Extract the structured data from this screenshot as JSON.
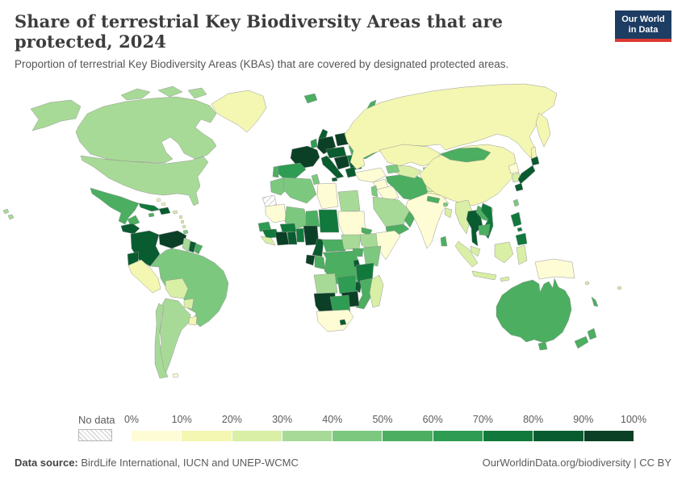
{
  "header": {
    "title": "Share of terrestrial Key Biodiversity Areas that are protected, 2024",
    "subtitle": "Proportion of terrestrial Key Biodiversity Areas (KBAs) that are covered by designated protected areas.",
    "logo": {
      "line1": "Our World",
      "line2": "in Data"
    }
  },
  "legend": {
    "no_data_label": "No data",
    "ticks": [
      "0%",
      "10%",
      "20%",
      "30%",
      "40%",
      "50%",
      "60%",
      "70%",
      "80%",
      "90%",
      "100%"
    ]
  },
  "footer": {
    "source_label": "Data source:",
    "source_text": " BirdLife International, IUCN and UNEP-WCMC",
    "right_text": "OurWorldinData.org/biodiversity | CC BY"
  },
  "colors": {
    "logo_bg": "#1d3d63",
    "logo_bar": "#dc3a31",
    "text": "#5b5b5b"
  },
  "chart_data": {
    "type": "choropleth",
    "title": "Share of terrestrial Key Biodiversity Areas that are protected, 2024",
    "unit": "%",
    "year": 2024,
    "legend_position": "bottom",
    "no_data": {
      "label": "No data",
      "pattern": "hatch"
    },
    "bins": [
      {
        "range": "0-10%",
        "color": "#fdfcd4"
      },
      {
        "range": "10-20%",
        "color": "#f3f7b1"
      },
      {
        "range": "20-30%",
        "color": "#d9efa6"
      },
      {
        "range": "30-40%",
        "color": "#a8da97"
      },
      {
        "range": "40-50%",
        "color": "#7cc87f"
      },
      {
        "range": "50-60%",
        "color": "#4cae60"
      },
      {
        "range": "60-70%",
        "color": "#2e9c52"
      },
      {
        "range": "70-80%",
        "color": "#11793c"
      },
      {
        "range": "80-90%",
        "color": "#095c30"
      },
      {
        "range": "90-100%",
        "color": "#0b4026"
      }
    ],
    "countries": [
      {
        "name": "Canada",
        "value": 35
      },
      {
        "name": "United States",
        "value": 35
      },
      {
        "name": "Greenland",
        "value": 15
      },
      {
        "name": "Mexico",
        "value": 55
      },
      {
        "name": "Guatemala",
        "value": 82
      },
      {
        "name": "Panama",
        "value": 75
      },
      {
        "name": "Cuba",
        "value": 75
      },
      {
        "name": "Dominican Republic",
        "value": 85
      },
      {
        "name": "Jamaica",
        "value": 55
      },
      {
        "name": "Bahamas",
        "value": 15
      },
      {
        "name": "Puerto Rico",
        "value": 25
      },
      {
        "name": "Lesser Antilles",
        "value": 25
      },
      {
        "name": "Trinidad and Tobago",
        "value": 45
      },
      {
        "name": "Colombia",
        "value": 85
      },
      {
        "name": "Venezuela",
        "value": 95
      },
      {
        "name": "Guyana",
        "value": 35
      },
      {
        "name": "Suriname",
        "value": 85
      },
      {
        "name": "French Guiana",
        "value": 55
      },
      {
        "name": "Ecuador",
        "value": 85
      },
      {
        "name": "Peru",
        "value": 15
      },
      {
        "name": "Brazil",
        "value": 45
      },
      {
        "name": "Bolivia",
        "value": 25
      },
      {
        "name": "Paraguay",
        "value": 25
      },
      {
        "name": "Uruguay",
        "value": 15
      },
      {
        "name": "Argentina",
        "value": 35
      },
      {
        "name": "Chile",
        "value": 35
      },
      {
        "name": "Falkland Islands",
        "value": 5
      },
      {
        "name": "Iceland",
        "value": 55
      },
      {
        "name": "Ireland",
        "value": 65
      },
      {
        "name": "United Kingdom",
        "value": 85
      },
      {
        "name": "Norway",
        "value": 55
      },
      {
        "name": "Sweden",
        "value": 85
      },
      {
        "name": "Finland",
        "value": 92
      },
      {
        "name": "Denmark",
        "value": 85
      },
      {
        "name": "Baltic states",
        "value": 85
      },
      {
        "name": "Poland",
        "value": 95
      },
      {
        "name": "Germany",
        "value": 95
      },
      {
        "name": "Czechia-Hungary",
        "value": 88
      },
      {
        "name": "France",
        "value": 95
      },
      {
        "name": "Spain",
        "value": 65
      },
      {
        "name": "Portugal",
        "value": 55
      },
      {
        "name": "Italy",
        "value": 85
      },
      {
        "name": "Balkans",
        "value": 95
      },
      {
        "name": "Greece",
        "value": 85
      },
      {
        "name": "Bulgaria",
        "value": 85
      },
      {
        "name": "Romania",
        "value": 75
      },
      {
        "name": "Ukraine",
        "value": 55
      },
      {
        "name": "Belarus",
        "value": 65
      },
      {
        "name": "Russia",
        "value": 15
      },
      {
        "name": "Turkey",
        "value": 5
      },
      {
        "name": "Syria",
        "value": 5
      },
      {
        "name": "Iraq",
        "value": 8
      },
      {
        "name": "Israel-Jordan",
        "value": 45
      },
      {
        "name": "Saudi Arabia",
        "value": 35
      },
      {
        "name": "Yemen",
        "value": 55
      },
      {
        "name": "Oman",
        "value": 55
      },
      {
        "name": "Iran",
        "value": 55
      },
      {
        "name": "Afghanistan",
        "value": 25
      },
      {
        "name": "Pakistan",
        "value": 15
      },
      {
        "name": "Kazakhstan",
        "value": 12
      },
      {
        "name": "Uzbekistan-Turkmenistan",
        "value": 25
      },
      {
        "name": "Kyrgyzstan-Tajikistan",
        "value": 45
      },
      {
        "name": "Caucasus",
        "value": 45
      },
      {
        "name": "India",
        "value": 5
      },
      {
        "name": "Nepal",
        "value": 55
      },
      {
        "name": "Bhutan",
        "value": 45
      },
      {
        "name": "Bangladesh",
        "value": 25
      },
      {
        "name": "Sri Lanka",
        "value": 55
      },
      {
        "name": "Myanmar",
        "value": 25
      },
      {
        "name": "Thailand",
        "value": 85
      },
      {
        "name": "Laos",
        "value": 55
      },
      {
        "name": "Vietnam",
        "value": 75
      },
      {
        "name": "Cambodia",
        "value": 55
      },
      {
        "name": "Malaysia",
        "value": 25
      },
      {
        "name": "Indonesia",
        "value": 25
      },
      {
        "name": "Philippines",
        "value": 75
      },
      {
        "name": "Papua New Guinea",
        "value": 5
      },
      {
        "name": "China",
        "value": 15
      },
      {
        "name": "Mongolia",
        "value": 55
      },
      {
        "name": "North Korea",
        "value": 5
      },
      {
        "name": "South Korea",
        "value": 25
      },
      {
        "name": "Japan",
        "value": 85
      },
      {
        "name": "Taiwan",
        "value": 45
      },
      {
        "name": "Morocco",
        "value": 45
      },
      {
        "name": "Algeria",
        "value": 45
      },
      {
        "name": "Tunisia",
        "value": 45
      },
      {
        "name": "Libya",
        "value": 5
      },
      {
        "name": "Egypt",
        "value": 35
      },
      {
        "name": "Western Sahara",
        "value": null
      },
      {
        "name": "Mauritania",
        "value": 5
      },
      {
        "name": "Mali",
        "value": 45
      },
      {
        "name": "Niger",
        "value": 55
      },
      {
        "name": "Chad",
        "value": 75
      },
      {
        "name": "Sudan",
        "value": 5
      },
      {
        "name": "Eritrea",
        "value": 55
      },
      {
        "name": "Ethiopia",
        "value": 35
      },
      {
        "name": "Somalia",
        "value": 8
      },
      {
        "name": "Senegal",
        "value": 65
      },
      {
        "name": "Guinea",
        "value": 75
      },
      {
        "name": "Sierra Leone",
        "value": 25
      },
      {
        "name": "Cote dIvoire",
        "value": 95
      },
      {
        "name": "Ghana",
        "value": 85
      },
      {
        "name": "Benin",
        "value": 75
      },
      {
        "name": "Burkina Faso",
        "value": 75
      },
      {
        "name": "Nigeria",
        "value": 95
      },
      {
        "name": "Cameroon",
        "value": 85
      },
      {
        "name": "Central African Republic",
        "value": 55
      },
      {
        "name": "South Sudan",
        "value": 35
      },
      {
        "name": "Uganda",
        "value": 55
      },
      {
        "name": "Kenya",
        "value": 45
      },
      {
        "name": "Gabon",
        "value": 95
      },
      {
        "name": "Congo",
        "value": 55
      },
      {
        "name": "DR Congo",
        "value": 55
      },
      {
        "name": "Rwanda",
        "value": 85
      },
      {
        "name": "Tanzania",
        "value": 75
      },
      {
        "name": "Angola",
        "value": 35
      },
      {
        "name": "Zambia",
        "value": 65
      },
      {
        "name": "Malawi",
        "value": 85
      },
      {
        "name": "Mozambique",
        "value": 55
      },
      {
        "name": "Zimbabwe",
        "value": 95
      },
      {
        "name": "Namibia",
        "value": 95
      },
      {
        "name": "Botswana",
        "value": 65
      },
      {
        "name": "South Africa",
        "value": 5
      },
      {
        "name": "Lesotho",
        "value": 85
      },
      {
        "name": "Madagascar",
        "value": 25
      },
      {
        "name": "Australia",
        "value": 55
      },
      {
        "name": "New Zealand",
        "value": 55
      },
      {
        "name": "New Caledonia",
        "value": 55
      },
      {
        "name": "Solomon Islands",
        "value": 25
      },
      {
        "name": "Fiji",
        "value": 25
      }
    ]
  }
}
